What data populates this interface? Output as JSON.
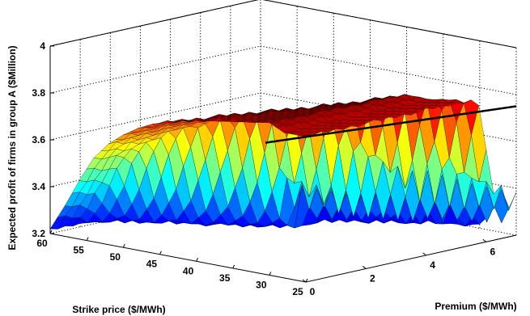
{
  "chart_data": {
    "type": "surface3d",
    "title": "",
    "xlabel": "Strike price ($/MWh)",
    "ylabel": "Premium ($/MWh)",
    "zlabel": "Expected profit of firms in group A ($Million)",
    "xlim": [
      25,
      60
    ],
    "ylim": [
      0,
      7
    ],
    "zlim": [
      3.2,
      4.0
    ],
    "x_ticks": [
      "60",
      "55",
      "50",
      "45",
      "40",
      "35",
      "30",
      "25"
    ],
    "y_ticks": [
      "0",
      "2",
      "4",
      "6"
    ],
    "z_ticks": [
      "3.2",
      "3.4",
      "3.6",
      "3.8",
      "4"
    ],
    "colormap": "jet",
    "grid": true,
    "plateau_profit": 3.21,
    "ridge": {
      "strike": [
        60,
        58,
        56,
        54,
        52,
        50,
        48,
        46,
        44,
        42,
        40,
        38,
        36,
        34,
        32,
        30,
        28
      ],
      "profit": [
        3.22,
        3.33,
        3.45,
        3.56,
        3.63,
        3.68,
        3.72,
        3.75,
        3.77,
        3.79,
        3.8,
        3.81,
        3.82,
        3.83,
        3.84,
        3.85,
        3.82
      ]
    },
    "premium_cutoff": {
      "strike": [
        60,
        55,
        50,
        45,
        40,
        35,
        30,
        25
      ],
      "premium": [
        0.3,
        0.9,
        1.6,
        2.3,
        3.1,
        3.9,
        4.7,
        5.6
      ]
    },
    "boundary_line": {
      "strike": [
        40,
        25
      ],
      "premium": [
        2.3,
        7.0
      ],
      "profit": [
        3.64,
        3.75
      ]
    }
  }
}
